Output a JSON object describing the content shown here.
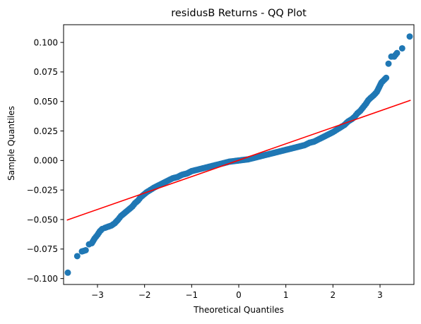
{
  "chart_data": {
    "type": "scatter",
    "title": "residusB Returns - QQ Plot",
    "xlabel": "Theoretical Quantiles",
    "ylabel": "Sample Quantiles",
    "xlim": [
      -3.72,
      3.72
    ],
    "ylim": [
      -0.105,
      0.115
    ],
    "xticks": [
      -3,
      -2,
      -1,
      0,
      1,
      2,
      3
    ],
    "xtick_labels": [
      "−3",
      "−2",
      "−1",
      "0",
      "1",
      "2",
      "3"
    ],
    "yticks": [
      -0.1,
      -0.075,
      -0.05,
      -0.025,
      0.0,
      0.025,
      0.05,
      0.075,
      0.1
    ],
    "ytick_labels": [
      "−0.100",
      "−0.075",
      "−0.050",
      "−0.025",
      "0.000",
      "0.025",
      "0.050",
      "0.075",
      "0.100"
    ],
    "grid": false,
    "colors": {
      "points": "#1f77b4",
      "reference_line": "#ff0000"
    },
    "reference_line": {
      "x": [
        -3.65,
        3.65
      ],
      "y": [
        -0.0505,
        0.051
      ]
    },
    "series": [
      {
        "points": [
          [
            -3.63,
            -0.095
          ],
          [
            -3.43,
            -0.081
          ],
          [
            -3.33,
            -0.077
          ],
          [
            -3.25,
            -0.076
          ],
          [
            -3.18,
            -0.071
          ],
          [
            -3.12,
            -0.07
          ],
          [
            -3.06,
            -0.066
          ],
          [
            -3.0,
            -0.063
          ],
          [
            -2.95,
            -0.06
          ],
          [
            -2.9,
            -0.058
          ],
          [
            -2.84,
            -0.057
          ],
          [
            -2.77,
            -0.056
          ],
          [
            -2.7,
            -0.055
          ],
          [
            -2.63,
            -0.053
          ],
          [
            -2.56,
            -0.05
          ],
          [
            -2.5,
            -0.047
          ],
          [
            -2.44,
            -0.045
          ],
          [
            -2.38,
            -0.043
          ],
          [
            -2.32,
            -0.041
          ],
          [
            -2.26,
            -0.039
          ],
          [
            -2.2,
            -0.036
          ],
          [
            -2.14,
            -0.034
          ],
          [
            -2.08,
            -0.031
          ],
          [
            -2.02,
            -0.029
          ],
          [
            -1.96,
            -0.027
          ],
          [
            -1.88,
            -0.025
          ],
          [
            -1.8,
            -0.023
          ],
          [
            -1.7,
            -0.021
          ],
          [
            -1.6,
            -0.019
          ],
          [
            -1.5,
            -0.017
          ],
          [
            -1.4,
            -0.015
          ],
          [
            -1.3,
            -0.014
          ],
          [
            -1.2,
            -0.012
          ],
          [
            -1.1,
            -0.011
          ],
          [
            -1.0,
            -0.009
          ],
          [
            -0.9,
            -0.008
          ],
          [
            -0.8,
            -0.007
          ],
          [
            -0.7,
            -0.006
          ],
          [
            -0.6,
            -0.005
          ],
          [
            -0.5,
            -0.004
          ],
          [
            -0.4,
            -0.003
          ],
          [
            -0.3,
            -0.002
          ],
          [
            -0.2,
            -0.001
          ],
          [
            -0.1,
            -0.0005
          ],
          [
            0.0,
            0.0
          ],
          [
            0.1,
            0.0005
          ],
          [
            0.2,
            0.001
          ],
          [
            0.3,
            0.002
          ],
          [
            0.4,
            0.003
          ],
          [
            0.5,
            0.004
          ],
          [
            0.6,
            0.005
          ],
          [
            0.7,
            0.006
          ],
          [
            0.8,
            0.007
          ],
          [
            0.9,
            0.008
          ],
          [
            1.0,
            0.009
          ],
          [
            1.1,
            0.01
          ],
          [
            1.2,
            0.011
          ],
          [
            1.3,
            0.012
          ],
          [
            1.4,
            0.013
          ],
          [
            1.5,
            0.015
          ],
          [
            1.6,
            0.016
          ],
          [
            1.7,
            0.018
          ],
          [
            1.8,
            0.02
          ],
          [
            1.9,
            0.022
          ],
          [
            2.0,
            0.024
          ],
          [
            2.08,
            0.026
          ],
          [
            2.16,
            0.028
          ],
          [
            2.24,
            0.03
          ],
          [
            2.32,
            0.033
          ],
          [
            2.4,
            0.035
          ],
          [
            2.46,
            0.037
          ],
          [
            2.52,
            0.04
          ],
          [
            2.58,
            0.042
          ],
          [
            2.64,
            0.045
          ],
          [
            2.7,
            0.048
          ],
          [
            2.75,
            0.051
          ],
          [
            2.8,
            0.053
          ],
          [
            2.86,
            0.055
          ],
          [
            2.93,
            0.058
          ],
          [
            2.98,
            0.062
          ],
          [
            3.03,
            0.066
          ],
          [
            3.08,
            0.068
          ],
          [
            3.13,
            0.07
          ],
          [
            3.18,
            0.082
          ],
          [
            3.24,
            0.088
          ],
          [
            3.3,
            0.088
          ],
          [
            3.36,
            0.091
          ],
          [
            3.47,
            0.095
          ],
          [
            3.63,
            0.105
          ]
        ]
      }
    ]
  }
}
